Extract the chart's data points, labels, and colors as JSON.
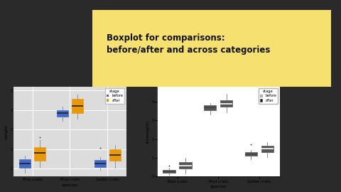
{
  "title": "Boxplot for comparisons:\nbefore/after and across categories",
  "title_bg": "#f5e070",
  "fig_bg": "#2a2a2a",
  "slide_bg": "#e8e8e8",
  "species": [
    "Blue crabs",
    "Mud crabs",
    "Spider crabs"
  ],
  "left_plot": {
    "bg_color": "#dcdcdc",
    "xlabel": "species",
    "ylabel": "weight",
    "before_color": "#4169c8",
    "after_color": "#e8980a",
    "legend_label_before": "before",
    "legend_label_after": "after",
    "groups": {
      "Blue crabs": {
        "before": {
          "q1": 1.05,
          "median": 1.25,
          "q3": 1.5,
          "whislo": 0.8,
          "whishi": 1.65,
          "fliers": []
        },
        "after": {
          "q1": 1.4,
          "median": 1.8,
          "q3": 2.1,
          "whislo": 1.1,
          "whishi": 2.45,
          "fliers": [
            2.6
          ]
        }
      },
      "Mud crabs": {
        "before": {
          "q1": 3.65,
          "median": 3.85,
          "q3": 4.0,
          "whislo": 3.45,
          "whishi": 4.15,
          "fliers": []
        },
        "after": {
          "q1": 3.85,
          "median": 4.2,
          "q3": 4.55,
          "whislo": 3.55,
          "whishi": 4.8,
          "fliers": []
        }
      },
      "Spider crabs": {
        "before": {
          "q1": 1.1,
          "median": 1.25,
          "q3": 1.45,
          "whislo": 0.95,
          "whishi": 1.6,
          "fliers": [
            2.05
          ]
        },
        "after": {
          "q1": 1.4,
          "median": 1.7,
          "q3": 2.0,
          "whislo": 1.05,
          "whishi": 2.2,
          "fliers": []
        }
      }
    },
    "ylim": [
      0.6,
      5.2
    ]
  },
  "right_plot": {
    "bg_color": "#ffffff",
    "xlabel": "species",
    "ylabel": "ln(weight)",
    "before_color": "#c0c0c0",
    "after_color": "#111111",
    "legend_label_before": "before",
    "legend_label_after": "after",
    "groups": {
      "Blue crabs": {
        "before": {
          "q1": 0.2,
          "median": 0.27,
          "q3": 0.36,
          "whislo": 0.08,
          "whishi": 0.48,
          "fliers": [
            0.58
          ]
        },
        "after": {
          "q1": 0.42,
          "median": 0.6,
          "q3": 0.78,
          "whislo": 0.18,
          "whishi": 1.0,
          "fliers": []
        }
      },
      "Mud crabs": {
        "before": {
          "q1": 3.52,
          "median": 3.68,
          "q3": 3.78,
          "whislo": 3.32,
          "whishi": 3.9,
          "fliers": []
        },
        "after": {
          "q1": 3.72,
          "median": 3.88,
          "q3": 4.08,
          "whislo": 3.42,
          "whishi": 4.42,
          "fliers": []
        }
      },
      "Spider crabs": {
        "before": {
          "q1": 1.1,
          "median": 1.2,
          "q3": 1.3,
          "whislo": 0.92,
          "whishi": 1.42,
          "fliers": [
            1.72
          ]
        },
        "after": {
          "q1": 1.3,
          "median": 1.48,
          "q3": 1.65,
          "whislo": 1.02,
          "whishi": 1.82,
          "fliers": []
        }
      }
    },
    "ylim": [
      0.0,
      4.8
    ]
  }
}
